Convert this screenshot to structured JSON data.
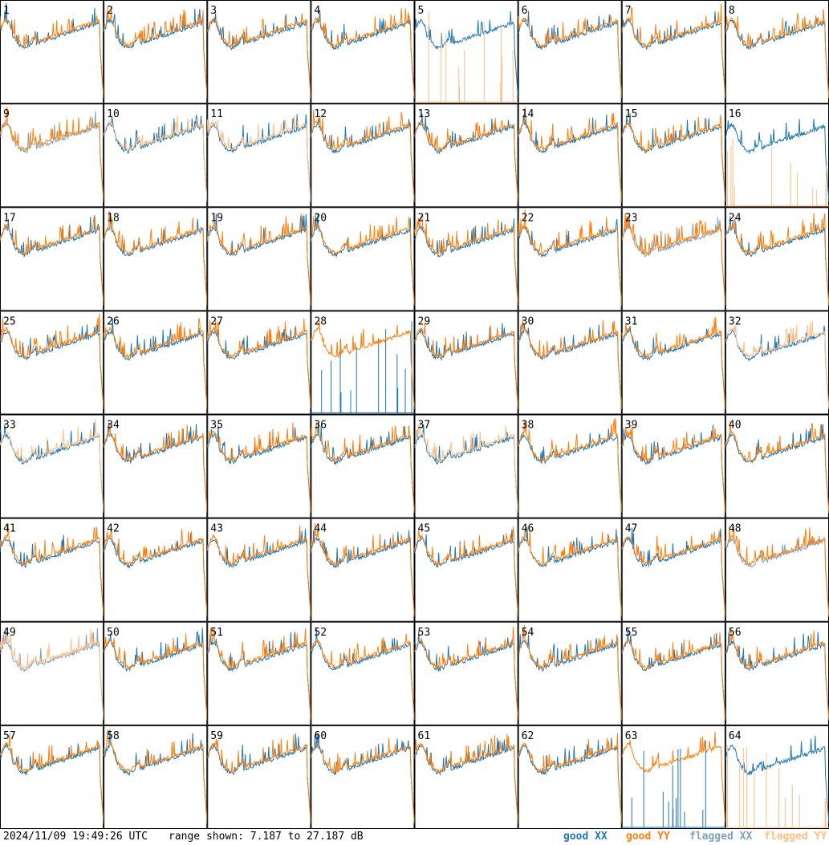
{
  "chart_data": {
    "type": "line",
    "panel_labels": [
      "1",
      "2",
      "3",
      "4",
      "5",
      "6",
      "7",
      "8",
      "9",
      "10",
      "11",
      "12",
      "13",
      "14",
      "15",
      "16",
      "17",
      "18",
      "19",
      "20",
      "21",
      "22",
      "23",
      "24",
      "25",
      "26",
      "27",
      "28",
      "29",
      "30",
      "31",
      "32",
      "33",
      "34",
      "35",
      "36",
      "37",
      "38",
      "39",
      "40",
      "41",
      "42",
      "43",
      "44",
      "45",
      "46",
      "47",
      "48",
      "49",
      "50",
      "51",
      "52",
      "53",
      "54",
      "55",
      "56",
      "57",
      "58",
      "59",
      "60",
      "61",
      "62",
      "63",
      "64"
    ],
    "ylim": [
      7.187,
      27.187
    ],
    "series": [
      {
        "name": "good XX",
        "color": "#1f77b4"
      },
      {
        "name": "good YY",
        "color": "#ff7f0e"
      },
      {
        "name": "flagged XX",
        "color": "#7f9fbf"
      },
      {
        "name": "flagged YY",
        "color": "#ffbf87"
      }
    ],
    "flagged_xx": [
      "9",
      "23",
      "48",
      "49"
    ],
    "flagged_yy": [
      "10",
      "11",
      "32",
      "33",
      "37",
      "49"
    ],
    "dead_xx": [
      "28",
      "63"
    ],
    "dead_yy": [
      "5",
      "16",
      "64"
    ]
  },
  "footer": {
    "timestamp": "2024/11/09 19:49:26 UTC",
    "range_text": "range shown: 7.187 to 27.187 dB",
    "legend": [
      {
        "label": "good XX",
        "color": "#1f77b4"
      },
      {
        "label": "good YY",
        "color": "#ff7f0e"
      },
      {
        "label": "flagged XX",
        "color": "#7f9fbf"
      },
      {
        "label": "flagged YY",
        "color": "#ffbf87"
      }
    ]
  }
}
